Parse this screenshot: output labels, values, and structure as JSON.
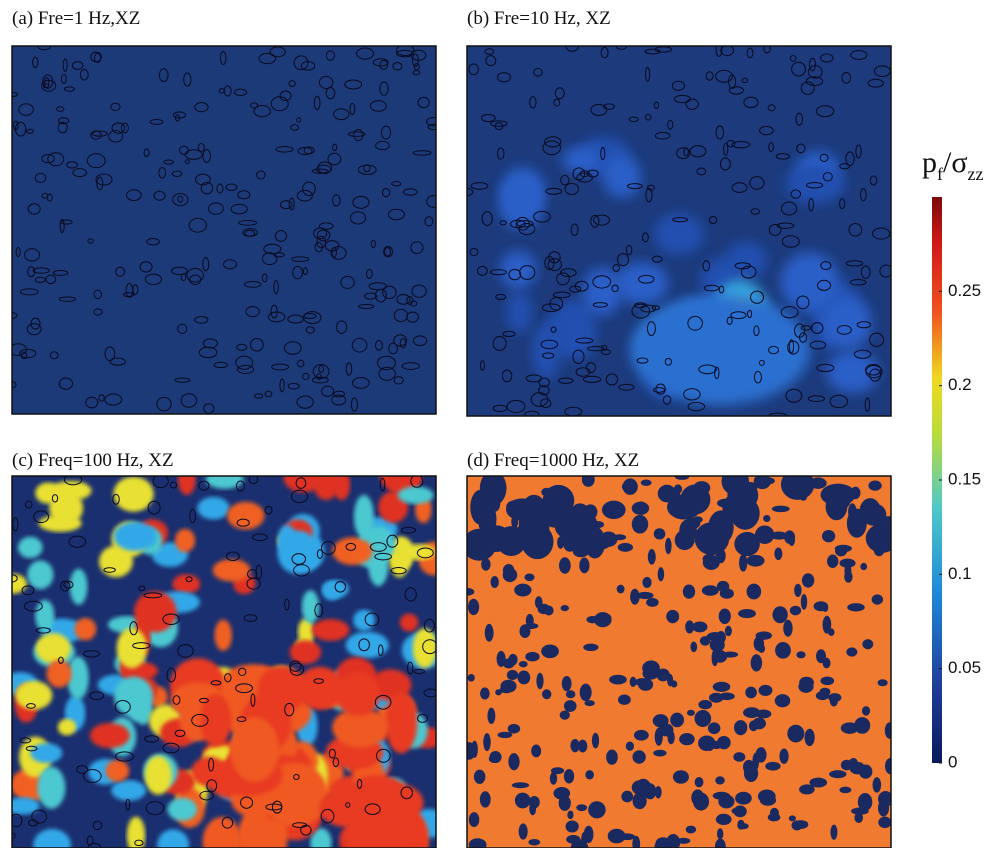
{
  "chart_data": {
    "type": "heatmap",
    "panels": [
      {
        "title": "(a) Fre=1 Hz,XZ"
      },
      {
        "title": "(b) Fre=10 Hz, XZ"
      },
      {
        "title": "(c) Freq=100 Hz, XZ"
      },
      {
        "title": "(d) Freq=1000 Hz, XZ"
      }
    ],
    "colorbar": {
      "label": [
        "p",
        "f",
        "/σ",
        "zz"
      ],
      "lim": [
        0,
        0.3
      ],
      "ticks": [
        0,
        0.05,
        0.1,
        0.15,
        0.2,
        0.25
      ]
    }
  }
}
